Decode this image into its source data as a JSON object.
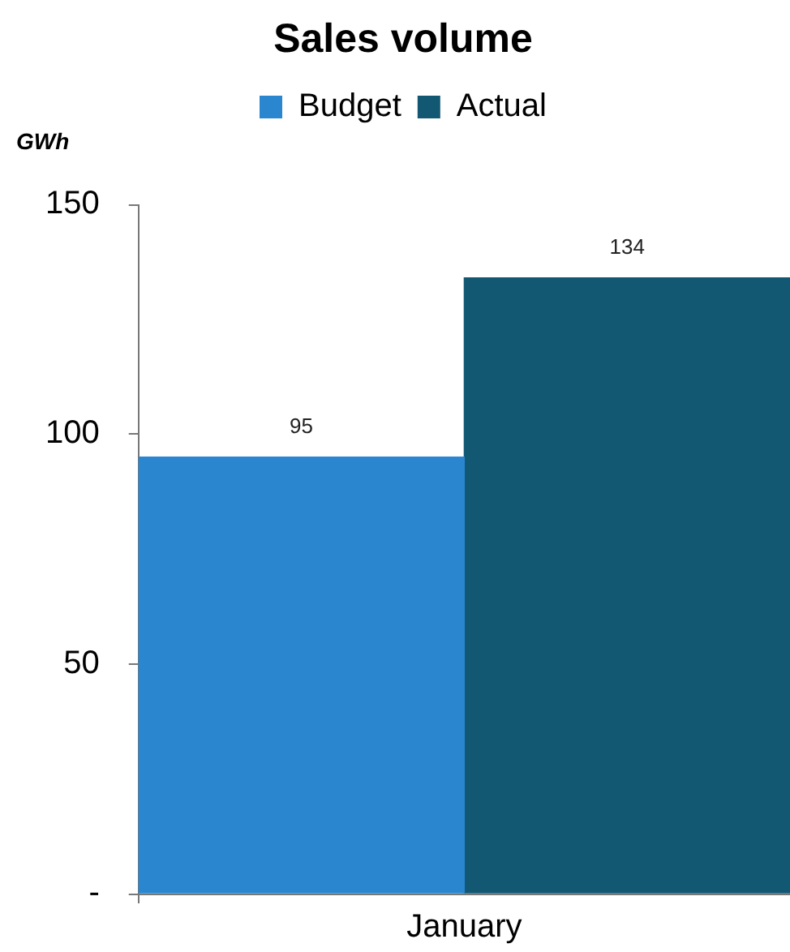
{
  "chart_data": {
    "type": "bar",
    "title": "Sales volume",
    "ylabel": "GWh",
    "categories": [
      "January"
    ],
    "series": [
      {
        "name": "Budget",
        "color": "#2986cf",
        "values": [
          95
        ]
      },
      {
        "name": "Actual",
        "color": "#135873",
        "values": [
          134
        ]
      }
    ],
    "ylim": [
      0,
      150
    ],
    "yticks": [
      {
        "value": 0,
        "label": "-"
      },
      50,
      100,
      150
    ],
    "grid": false,
    "legend": "top",
    "data_labels": true
  }
}
